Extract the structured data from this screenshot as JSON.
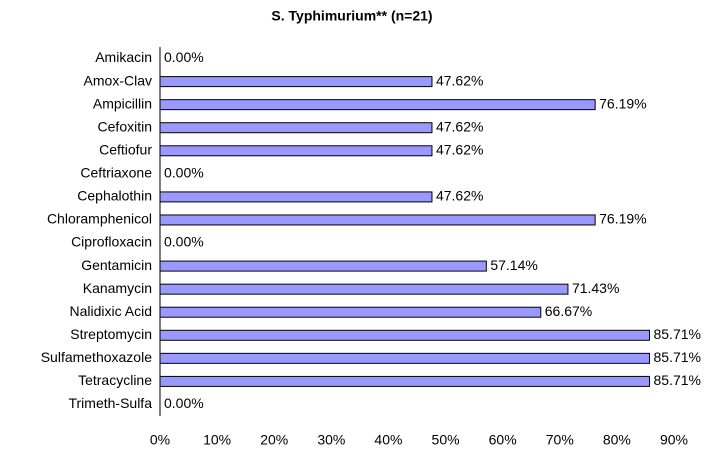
{
  "chart_data": {
    "type": "bar",
    "orientation": "horizontal",
    "title": "S. Typhimurium** (n=21)",
    "categories": [
      "Amikacin",
      "Amox-Clav",
      "Ampicillin",
      "Cefoxitin",
      "Ceftiofur",
      "Ceftriaxone",
      "Cephalothin",
      "Chloramphenicol",
      "Ciprofloxacin",
      "Gentamicin",
      "Kanamycin",
      "Nalidixic Acid",
      "Streptomycin",
      "Sulfamethoxazole",
      "Tetracycline",
      "Trimeth-Sulfa"
    ],
    "values": [
      0,
      47.62,
      76.19,
      47.62,
      47.62,
      0,
      47.62,
      76.19,
      0,
      57.14,
      71.43,
      66.67,
      85.71,
      85.71,
      85.71,
      0
    ],
    "value_labels": [
      "0.00%",
      "47.62%",
      "76.19%",
      "47.62%",
      "47.62%",
      "0.00%",
      "47.62%",
      "76.19%",
      "0.00%",
      "57.14%",
      "71.43%",
      "66.67%",
      "85.71%",
      "85.71%",
      "85.71%",
      "0.00%"
    ],
    "color": "#9999ff",
    "xlim": [
      0,
      90
    ],
    "xticks": [
      {
        "value": 0,
        "label": "0%"
      },
      {
        "value": 10,
        "label": "10%"
      },
      {
        "value": 20,
        "label": "20%"
      },
      {
        "value": 30,
        "label": "30%"
      },
      {
        "value": 40,
        "label": "40%"
      },
      {
        "value": 50,
        "label": "50%"
      },
      {
        "value": 60,
        "label": "60%"
      },
      {
        "value": 70,
        "label": "70%"
      },
      {
        "value": 80,
        "label": "80%"
      },
      {
        "value": 90,
        "label": "90%"
      }
    ],
    "grid": false
  }
}
